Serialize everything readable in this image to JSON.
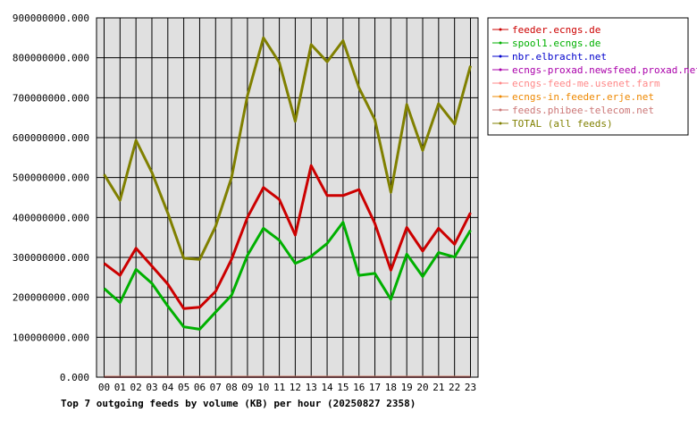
{
  "chart_data": {
    "type": "line",
    "title": "Top 7 outgoing feeds by volume (KB) per hour (20250827 2358)",
    "xlabel": "",
    "ylabel": "",
    "ylim": [
      0,
      900000000
    ],
    "y_ticks": [
      "0.000",
      "100000000.000",
      "200000000.000",
      "300000000.000",
      "400000000.000",
      "500000000.000",
      "600000000.000",
      "700000000.000",
      "800000000.000",
      "900000000.000"
    ],
    "y_tick_values": [
      0,
      100000000,
      200000000,
      300000000,
      400000000,
      500000000,
      600000000,
      700000000,
      800000000,
      900000000
    ],
    "categories": [
      "00",
      "01",
      "02",
      "03",
      "04",
      "05",
      "06",
      "07",
      "08",
      "09",
      "10",
      "11",
      "12",
      "13",
      "14",
      "15",
      "16",
      "17",
      "18",
      "19",
      "20",
      "21",
      "22",
      "23"
    ],
    "grid": true,
    "legend_position": "top-right",
    "series": [
      {
        "name": "feeder.ecngs.de",
        "color": "#cc0000",
        "values": [
          285000000,
          255000000,
          323000000,
          278000000,
          233000000,
          172000000,
          175000000,
          215000000,
          295000000,
          400000000,
          475000000,
          445000000,
          356000000,
          530000000,
          455000000,
          455000000,
          470000000,
          385000000,
          268000000,
          375000000,
          316000000,
          373000000,
          333000000,
          412000000
        ]
      },
      {
        "name": "spool1.ecngs.de",
        "color": "#00b000",
        "values": [
          222000000,
          187000000,
          270000000,
          235000000,
          178000000,
          126000000,
          120000000,
          163000000,
          205000000,
          305000000,
          373000000,
          343000000,
          285000000,
          303000000,
          335000000,
          388000000,
          255000000,
          260000000,
          195000000,
          308000000,
          252000000,
          312000000,
          301000000,
          368000000
        ]
      },
      {
        "name": "nbr.elbracht.net",
        "color": "#0000cc",
        "values": [
          1000000,
          1000000,
          1000000,
          1000000,
          1000000,
          1000000,
          1000000,
          1000000,
          1000000,
          1000000,
          1000000,
          1000000,
          1000000,
          1000000,
          1000000,
          1000000,
          1000000,
          1000000,
          1000000,
          1000000,
          1000000,
          1000000,
          1000000,
          1000000
        ]
      },
      {
        "name": "ecngs-proxad.newsfeed.proxad.net",
        "color": "#aa00aa",
        "values": [
          1000000,
          1000000,
          1000000,
          1000000,
          1000000,
          1000000,
          1000000,
          1000000,
          1000000,
          1000000,
          1000000,
          1000000,
          1000000,
          1000000,
          1000000,
          1000000,
          1000000,
          1000000,
          1000000,
          1000000,
          1000000,
          1000000,
          1000000,
          1000000
        ]
      },
      {
        "name": "ecngs-feed-me.usenet.farm",
        "color": "#ff8888",
        "values": [
          1000000,
          1000000,
          1000000,
          1000000,
          1000000,
          1000000,
          1000000,
          1000000,
          1000000,
          1000000,
          1000000,
          1000000,
          1000000,
          1000000,
          1000000,
          1000000,
          1000000,
          1000000,
          1000000,
          1000000,
          1000000,
          1000000,
          1000000,
          1000000
        ]
      },
      {
        "name": "ecngs-in.feeder.erje.net",
        "color": "#ee8800",
        "values": [
          1000000,
          1000000,
          1000000,
          1000000,
          1000000,
          1000000,
          1000000,
          1000000,
          1000000,
          1000000,
          1000000,
          1000000,
          1000000,
          1000000,
          1000000,
          1000000,
          1000000,
          1000000,
          1000000,
          1000000,
          1000000,
          1000000,
          1000000,
          1000000
        ]
      },
      {
        "name": "feeds.phibee-telecom.net",
        "color": "#cc7777",
        "values": [
          1000000,
          1000000,
          1000000,
          1000000,
          1000000,
          1000000,
          1000000,
          1000000,
          1000000,
          1000000,
          1000000,
          1000000,
          1000000,
          1000000,
          1000000,
          1000000,
          1000000,
          1000000,
          1000000,
          1000000,
          1000000,
          1000000,
          1000000,
          1000000
        ]
      },
      {
        "name": "TOTAL (all feeds)",
        "color": "#808000",
        "values": [
          508000000,
          443000000,
          593000000,
          513000000,
          411000000,
          298000000,
          295000000,
          378000000,
          500000000,
          705000000,
          850000000,
          788000000,
          641000000,
          833000000,
          790000000,
          843000000,
          725000000,
          645000000,
          463000000,
          683000000,
          568000000,
          685000000,
          634000000,
          780000000
        ]
      }
    ]
  }
}
